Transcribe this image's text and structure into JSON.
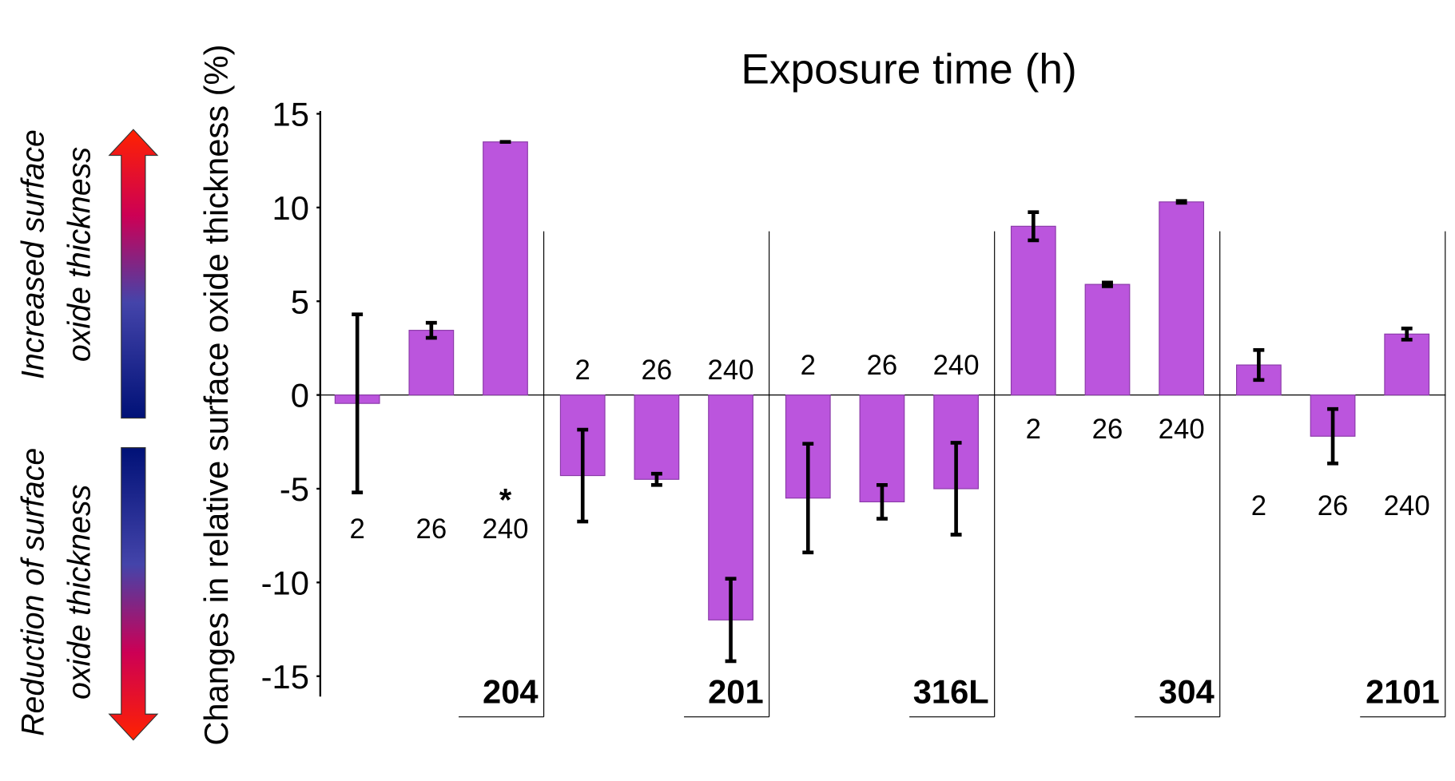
{
  "chart_data": {
    "type": "bar",
    "title": "Exposure time (h)",
    "y_label": "Changes in relative surface oxide thickness (%)",
    "ylim": [
      -15,
      15
    ],
    "yticks": [
      -15,
      -10,
      -5,
      0,
      5,
      10,
      15
    ],
    "color": "#bb55dd",
    "groups": [
      {
        "name": "204",
        "categories": [
          "2",
          "26",
          "240"
        ],
        "values": [
          -0.45,
          3.45,
          13.5
        ],
        "errors": [
          4.75,
          0.4,
          0
        ],
        "annotations": [
          null,
          null,
          "*"
        ]
      },
      {
        "name": "201",
        "categories": [
          "2",
          "26",
          "240"
        ],
        "values": [
          -4.3,
          -4.5,
          -12.0
        ],
        "errors": [
          2.45,
          0.3,
          2.2
        ]
      },
      {
        "name": "316L",
        "categories": [
          "2",
          "26",
          "240"
        ],
        "values": [
          -5.5,
          -5.7,
          -5.0
        ],
        "errors": [
          2.9,
          0.9,
          2.45
        ]
      },
      {
        "name": "304",
        "categories": [
          "2",
          "26",
          "240"
        ],
        "values": [
          9.0,
          5.9,
          10.3
        ],
        "errors": [
          0.75,
          0.1,
          0.05
        ]
      },
      {
        "name": "2101",
        "categories": [
          "2",
          "26",
          "240"
        ],
        "values": [
          1.6,
          -2.2,
          3.25
        ],
        "errors": [
          0.8,
          1.45,
          0.3
        ]
      }
    ],
    "side_labels": [
      {
        "lines": [
          "Increased surface",
          "oxide thickness"
        ]
      },
      {
        "lines": [
          "Reduction of surface",
          "oxide thickness"
        ]
      }
    ]
  }
}
